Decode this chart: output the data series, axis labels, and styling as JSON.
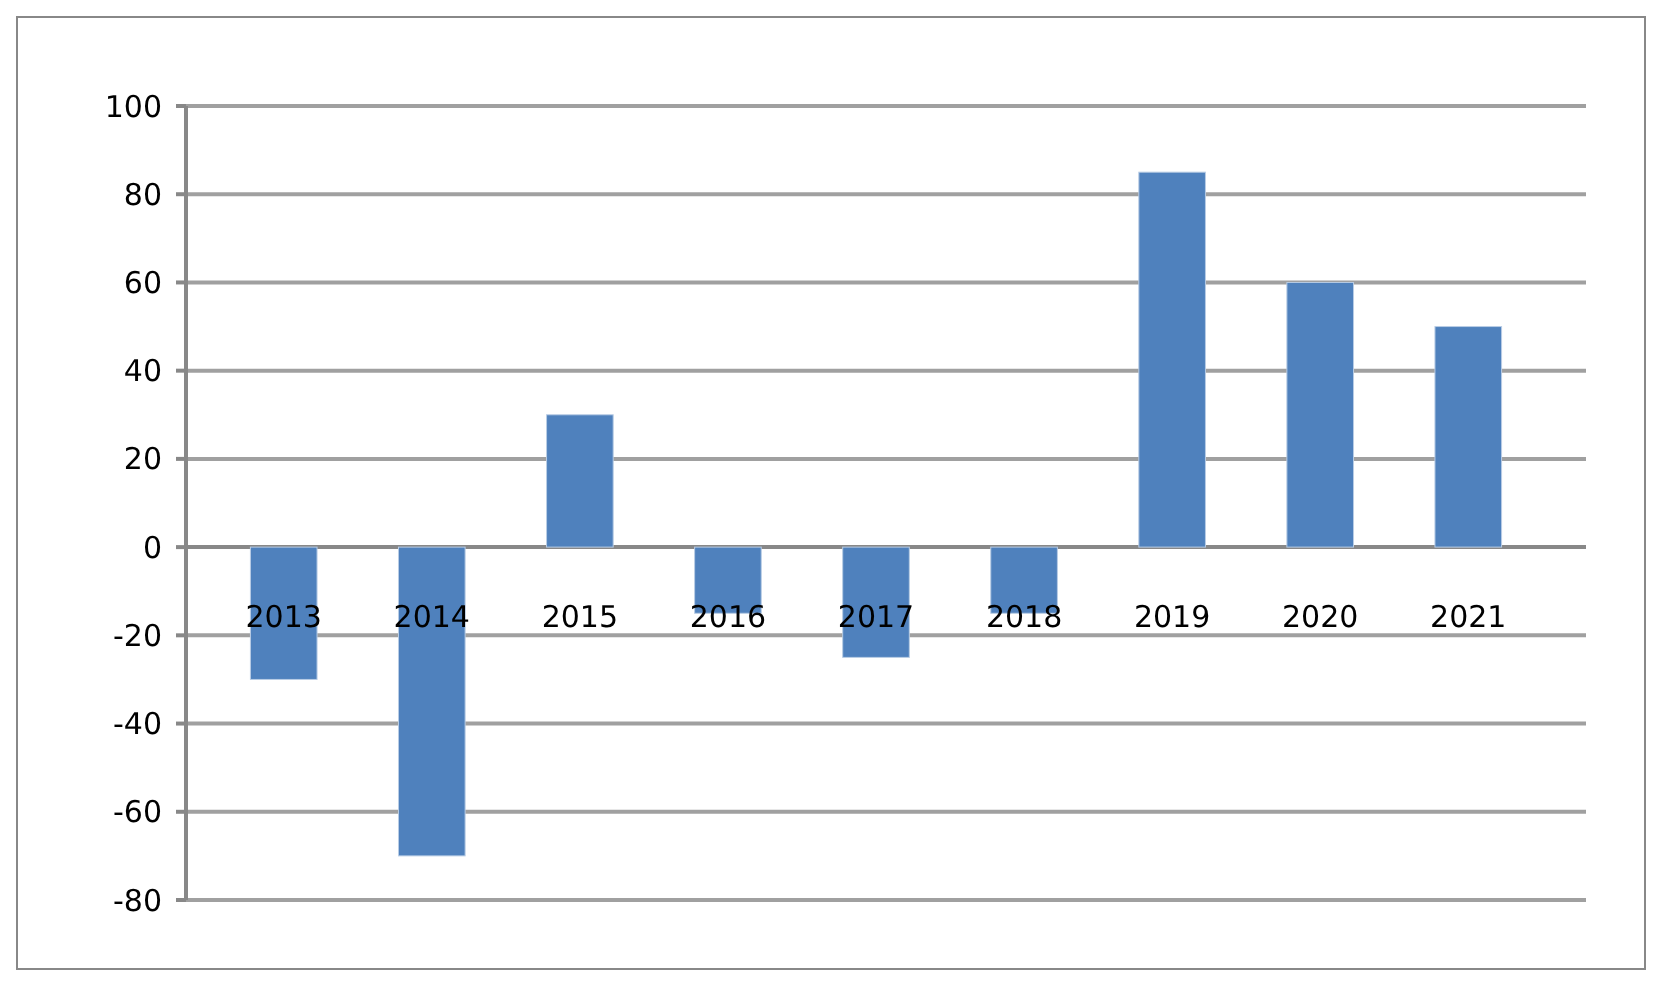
{
  "chart_data": {
    "type": "bar",
    "categories": [
      "2013",
      "2014",
      "2015",
      "2016",
      "2017",
      "2018",
      "2019",
      "2020",
      "2021"
    ],
    "values": [
      -30,
      -70,
      30,
      -15,
      -25,
      -15,
      85,
      60,
      50
    ],
    "color": "#4f81bd",
    "ylim": [
      -80,
      100
    ],
    "yticks": [
      -80,
      -60,
      -40,
      -20,
      0,
      20,
      40,
      60,
      80,
      100
    ],
    "grid": "y"
  }
}
